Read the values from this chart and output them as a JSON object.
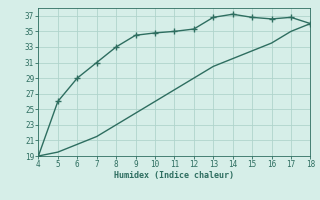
{
  "xlabel": "Humidex (Indice chaleur)",
  "background_color": "#d6eee8",
  "line_color": "#2e6e60",
  "grid_color": "#b0d4cc",
  "x_upper": [
    4,
    5,
    6,
    7,
    8,
    9,
    10,
    11,
    12,
    13,
    14,
    15,
    16,
    17,
    18
  ],
  "y_upper": [
    19,
    26,
    29,
    31,
    33,
    34.5,
    34.8,
    35,
    35.3,
    36.8,
    37.2,
    36.8,
    36.6,
    36.8,
    36.0
  ],
  "x_lower": [
    4,
    5,
    6,
    7,
    8,
    9,
    10,
    11,
    12,
    13,
    14,
    15,
    16,
    17,
    18
  ],
  "y_lower": [
    19,
    19.5,
    20.5,
    21.5,
    23,
    24.5,
    26,
    27.5,
    29,
    30.5,
    31.5,
    32.5,
    33.5,
    35,
    36.0
  ],
  "xlim": [
    4,
    18
  ],
  "ylim": [
    19,
    38
  ],
  "xticks": [
    4,
    5,
    6,
    7,
    8,
    9,
    10,
    11,
    12,
    13,
    14,
    15,
    16,
    17,
    18
  ],
  "yticks": [
    19,
    21,
    23,
    25,
    27,
    29,
    31,
    33,
    35,
    37
  ],
  "marker": "+",
  "markersize": 4,
  "linewidth": 1.0
}
